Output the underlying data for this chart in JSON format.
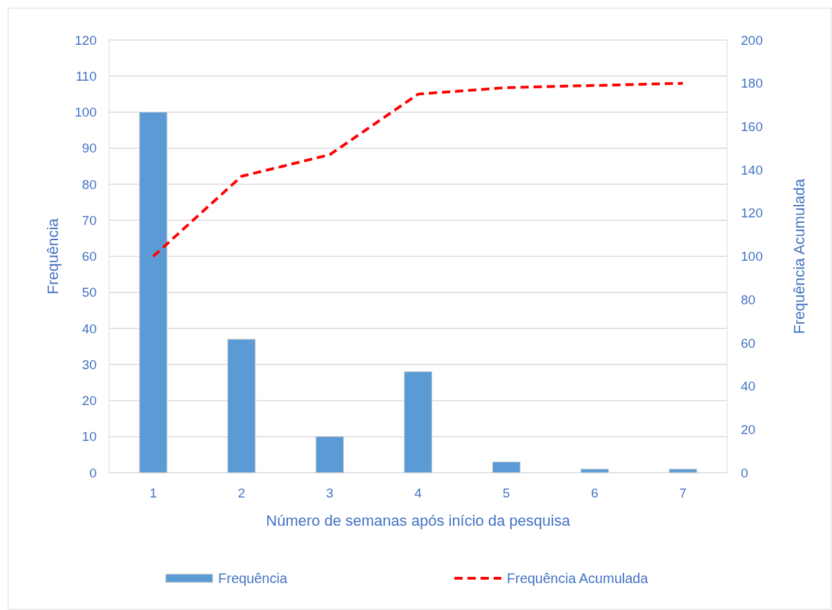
{
  "chart_data": {
    "type": "bar",
    "categories": [
      "1",
      "2",
      "3",
      "4",
      "5",
      "6",
      "7"
    ],
    "series": [
      {
        "name": "Frequência",
        "color": "#5b9bd5",
        "values": [
          100,
          37,
          10,
          28,
          3,
          1,
          1
        ]
      },
      {
        "name": "Frequência Acumulada",
        "type": "line",
        "axis": "y2",
        "color": "#ff0000",
        "line_style": "dashed",
        "marker": "none",
        "values": [
          100,
          137,
          147,
          175,
          178,
          179,
          180
        ]
      }
    ],
    "xlabel": "Número de semanas após início da pesquisa",
    "ylabel": "Frequência",
    "y2label": "Frequência Acumulada",
    "ylim": [
      0,
      120
    ],
    "yticks": [
      0,
      10,
      20,
      30,
      40,
      50,
      60,
      70,
      80,
      90,
      100,
      110,
      120
    ],
    "y2lim": [
      0,
      200
    ],
    "y2ticks": [
      0,
      20,
      40,
      60,
      80,
      100,
      120,
      140,
      160,
      180,
      200
    ],
    "grid": "y",
    "legend": "bottom"
  }
}
